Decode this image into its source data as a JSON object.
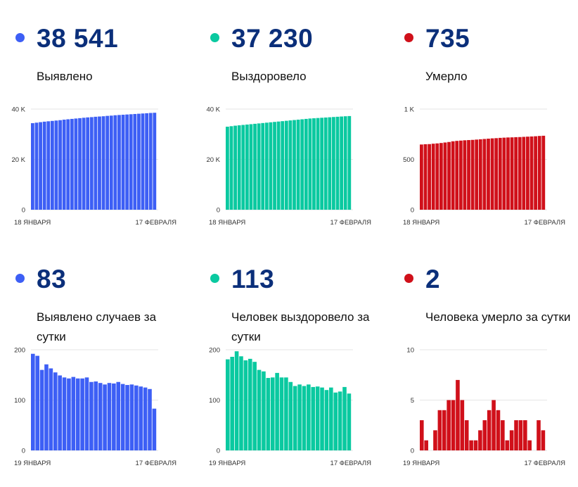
{
  "panels": [
    {
      "value": "38 541",
      "label": "Выявлено",
      "color": "#3d5ff5",
      "chart_data": {
        "type": "bar",
        "ylim": [
          0,
          40000
        ],
        "yticks": [
          0,
          20000,
          40000
        ],
        "ytick_labels": [
          "0",
          "20 K",
          "40 K"
        ],
        "x_start_label": "18 ЯНВАРЯ",
        "x_end_label": "17 ФЕВРАЛЯ",
        "values": [
          34400,
          34600,
          34800,
          35000,
          35150,
          35300,
          35450,
          35600,
          35800,
          35950,
          36100,
          36250,
          36400,
          36550,
          36700,
          36800,
          36950,
          37050,
          37150,
          37300,
          37400,
          37550,
          37650,
          37750,
          37850,
          37950,
          38050,
          38150,
          38250,
          38350,
          38460,
          38541
        ]
      }
    },
    {
      "value": "37 230",
      "label": "Выздоровело",
      "color": "#0ac9a0",
      "chart_data": {
        "type": "bar",
        "ylim": [
          0,
          40000
        ],
        "yticks": [
          0,
          20000,
          40000
        ],
        "ytick_labels": [
          "0",
          "20 K",
          "40 K"
        ],
        "x_start_label": "18 ЯНВАРЯ",
        "x_end_label": "17 ФЕВРАЛЯ",
        "values": [
          33000,
          33200,
          33400,
          33550,
          33700,
          33850,
          34000,
          34150,
          34300,
          34450,
          34600,
          34750,
          34900,
          35050,
          35200,
          35350,
          35500,
          35650,
          35800,
          35950,
          36100,
          36250,
          36350,
          36450,
          36550,
          36650,
          36750,
          36850,
          36950,
          37050,
          37150,
          37230
        ]
      }
    },
    {
      "value": "735",
      "label": "Умерло",
      "color": "#d0101a",
      "chart_data": {
        "type": "bar",
        "ylim": [
          0,
          1000
        ],
        "yticks": [
          0,
          500,
          1000
        ],
        "ytick_labels": [
          "0",
          "500",
          "1 K"
        ],
        "x_start_label": "18 ЯНВАРЯ",
        "x_end_label": "17 ФЕВРАЛЯ",
        "values": [
          648,
          651,
          652,
          656,
          659,
          663,
          668,
          673,
          680,
          684,
          687,
          690,
          692,
          694,
          697,
          700,
          703,
          706,
          709,
          711,
          714,
          716,
          718,
          719,
          721,
          722,
          724,
          726,
          728,
          730,
          733,
          735
        ]
      }
    },
    {
      "value": "83",
      "label": "Выявлено случаев за сутки",
      "color": "#3d5ff5",
      "chart_data": {
        "type": "bar",
        "ylim": [
          0,
          200
        ],
        "yticks": [
          0,
          100,
          200
        ],
        "ytick_labels": [
          "0",
          "100",
          "200"
        ],
        "x_start_label": "19 ЯНВАРЯ",
        "x_end_label": "17 ФЕВРАЛЯ",
        "values": [
          192,
          188,
          160,
          171,
          163,
          155,
          149,
          145,
          143,
          146,
          143,
          143,
          145,
          136,
          137,
          134,
          131,
          134,
          133,
          136,
          132,
          130,
          131,
          129,
          127,
          125,
          122,
          83
        ]
      }
    },
    {
      "value": "113",
      "label": "Человек выздоровело за сутки",
      "color": "#0ac9a0",
      "chart_data": {
        "type": "bar",
        "ylim": [
          0,
          200
        ],
        "yticks": [
          0,
          100,
          200
        ],
        "ytick_labels": [
          "0",
          "100",
          "200"
        ],
        "x_start_label": "19 ЯНВАРЯ",
        "x_end_label": "17 ФЕВРАЛЯ",
        "values": [
          181,
          186,
          197,
          187,
          179,
          182,
          176,
          160,
          157,
          144,
          145,
          154,
          145,
          145,
          136,
          128,
          131,
          128,
          131,
          126,
          127,
          125,
          120,
          125,
          115,
          117,
          126,
          113
        ]
      }
    },
    {
      "value": "2",
      "label": "Человека умерло за сутки",
      "color": "#d0101a",
      "chart_data": {
        "type": "bar",
        "ylim": [
          0,
          10
        ],
        "yticks": [
          0,
          5,
          10
        ],
        "ytick_labels": [
          "0",
          "5",
          "10"
        ],
        "x_start_label": "19 ЯНВАРЯ",
        "x_end_label": "17 ФЕВРАЛЯ",
        "values": [
          3,
          1,
          0,
          2,
          4,
          4,
          5,
          5,
          7,
          5,
          3,
          1,
          1,
          2,
          3,
          4,
          5,
          4,
          3,
          1,
          2,
          3,
          3,
          3,
          1,
          0,
          3,
          2
        ]
      }
    }
  ]
}
